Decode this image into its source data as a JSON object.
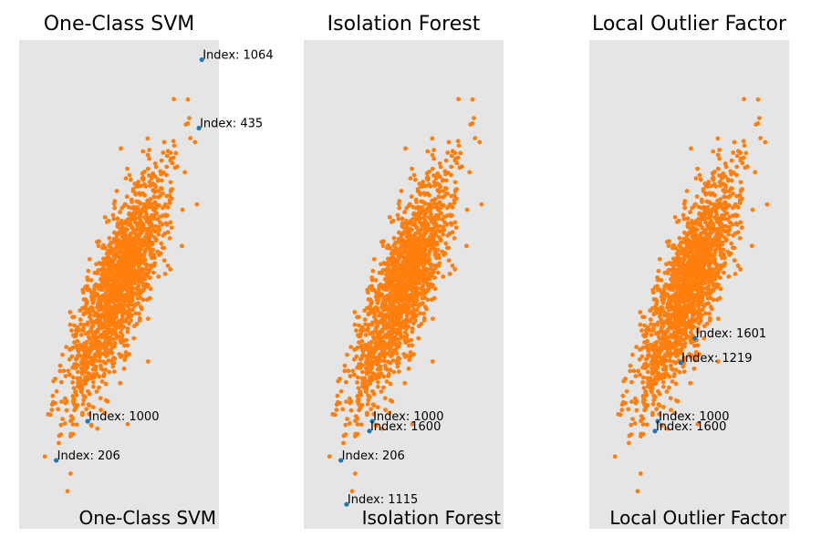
{
  "figure": {
    "background": "#ffffff",
    "panel_background": "#e5e5e5",
    "inlier_color": "#ff7f0e",
    "outlier_color": "#1f77b4",
    "text_color": "#000000"
  },
  "chart_data": [
    {
      "type": "scatter",
      "title": "One-Class SVM",
      "footer_label": "One-Class SVM",
      "xlabel": "",
      "ylabel": "",
      "grid": false,
      "axes_visible": false,
      "inliers": {
        "count": 1600,
        "center": [
          0,
          0
        ],
        "std_major": 1.4,
        "std_minor": 0.45,
        "angle_deg": 55
      },
      "outliers": [
        {
          "label": "Index: 1064",
          "x": 2.9,
          "y": 4.6
        },
        {
          "label": "Index: 435",
          "x": 2.8,
          "y": 3.2
        },
        {
          "label": "Index: 1000",
          "x": -1.1,
          "y": -2.8
        },
        {
          "label": "Index: 206",
          "x": -2.2,
          "y": -3.6
        }
      ]
    },
    {
      "type": "scatter",
      "title": "Isolation Forest",
      "footer_label": "Isolation Forest",
      "xlabel": "",
      "ylabel": "",
      "grid": false,
      "axes_visible": false,
      "inliers": {
        "count": 1600,
        "center": [
          0,
          0
        ],
        "std_major": 1.4,
        "std_minor": 0.45,
        "angle_deg": 55
      },
      "outliers": [
        {
          "label": "Index: 1000",
          "x": -1.1,
          "y": -2.8
        },
        {
          "label": "Index: 1600",
          "x": -1.2,
          "y": -3.0
        },
        {
          "label": "Index: 206",
          "x": -2.2,
          "y": -3.6
        },
        {
          "label": "Index: 1115",
          "x": -2.0,
          "y": -4.5
        }
      ]
    },
    {
      "type": "scatter",
      "title": "Local Outlier Factor",
      "footer_label": "Local Outlier Factor",
      "xlabel": "",
      "ylabel": "",
      "grid": false,
      "axes_visible": false,
      "inliers": {
        "count": 1600,
        "center": [
          0,
          0
        ],
        "std_major": 1.4,
        "std_minor": 0.45,
        "angle_deg": 55
      },
      "outliers": [
        {
          "label": "Index: 1601",
          "x": 0.2,
          "y": -1.1
        },
        {
          "label": "Index: 1219",
          "x": -0.3,
          "y": -1.6
        },
        {
          "label": "Index: 1000",
          "x": -1.1,
          "y": -2.8
        },
        {
          "label": "Index: 1600",
          "x": -1.2,
          "y": -3.0
        }
      ]
    }
  ]
}
